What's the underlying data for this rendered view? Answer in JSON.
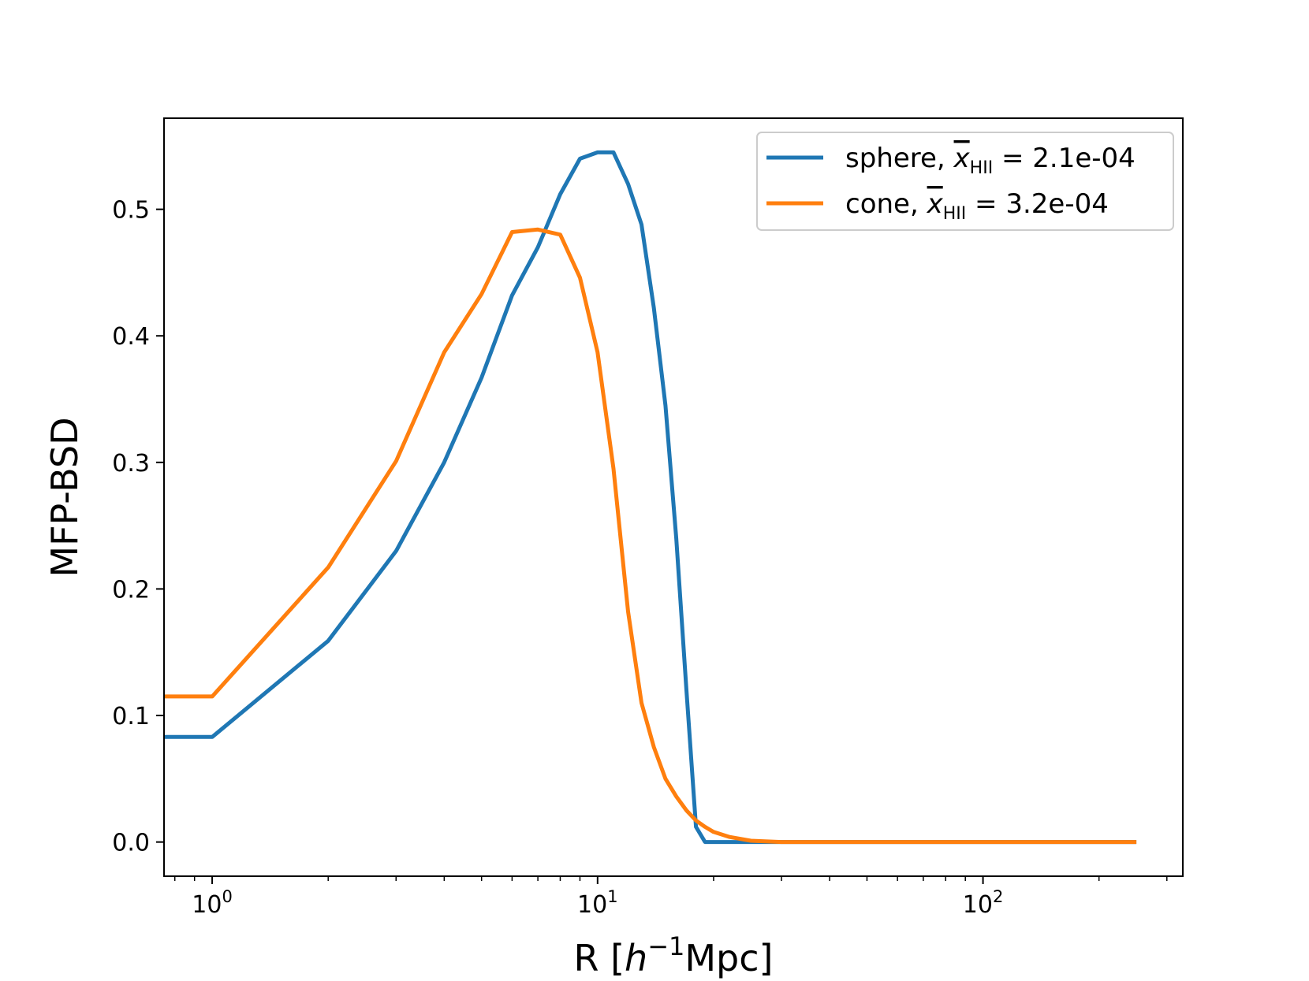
{
  "chart_data": {
    "type": "line",
    "title": "",
    "xlabel": {
      "prefix": "R [",
      "italic": "h",
      "sup": "−1",
      "suffix": "Mpc]"
    },
    "ylabel": "MFP-BSD",
    "xscale": "log",
    "xlim": [
      0.75,
      330
    ],
    "ylim": [
      -0.027,
      0.572
    ],
    "grid": false,
    "legend_position": "top-right",
    "x_ticks": [
      {
        "value": 1,
        "base": "10",
        "exp": "0"
      },
      {
        "value": 10,
        "base": "10",
        "exp": "1"
      },
      {
        "value": 100,
        "base": "10",
        "exp": "2"
      }
    ],
    "y_ticks": [
      0.0,
      0.1,
      0.2,
      0.3,
      0.4,
      0.5
    ],
    "y_tick_labels": [
      "0.0",
      "0.1",
      "0.2",
      "0.3",
      "0.4",
      "0.5"
    ],
    "series": [
      {
        "name": "sphere",
        "legend": {
          "prefix": "sphere, ",
          "symbol": "x",
          "sub": "HII",
          "suffix": " = 2.1e-04"
        },
        "color": "#1f77b4",
        "x": [
          0.5,
          1,
          2,
          3,
          4,
          5,
          6,
          7,
          8,
          9,
          10,
          11,
          12,
          13,
          14,
          15,
          16,
          17,
          18,
          19,
          20,
          22,
          25,
          30,
          40,
          60,
          100,
          150,
          250
        ],
        "y": [
          0.083,
          0.083,
          0.159,
          0.23,
          0.3,
          0.367,
          0.432,
          0.47,
          0.512,
          0.54,
          0.545,
          0.545,
          0.52,
          0.488,
          0.422,
          0.345,
          0.24,
          0.12,
          0.012,
          0.0,
          0.0,
          0.0,
          0.0,
          0.0,
          0.0,
          0.0,
          0.0,
          0.0,
          0.0
        ]
      },
      {
        "name": "cone",
        "legend": {
          "prefix": "cone, ",
          "symbol": "x",
          "sub": "HII",
          "suffix": " = 3.2e-04"
        },
        "color": "#ff7f0e",
        "x": [
          0.5,
          1,
          2,
          3,
          4,
          5,
          6,
          7,
          8,
          9,
          10,
          11,
          12,
          13,
          14,
          15,
          16,
          17,
          18,
          19,
          20,
          22,
          25,
          30,
          40,
          60,
          100,
          150,
          250
        ],
        "y": [
          0.115,
          0.115,
          0.217,
          0.301,
          0.387,
          0.433,
          0.482,
          0.484,
          0.48,
          0.446,
          0.387,
          0.295,
          0.182,
          0.11,
          0.075,
          0.05,
          0.036,
          0.025,
          0.017,
          0.012,
          0.008,
          0.004,
          0.001,
          0.0,
          0.0,
          0.0,
          0.0,
          0.0,
          0.0
        ]
      }
    ]
  }
}
